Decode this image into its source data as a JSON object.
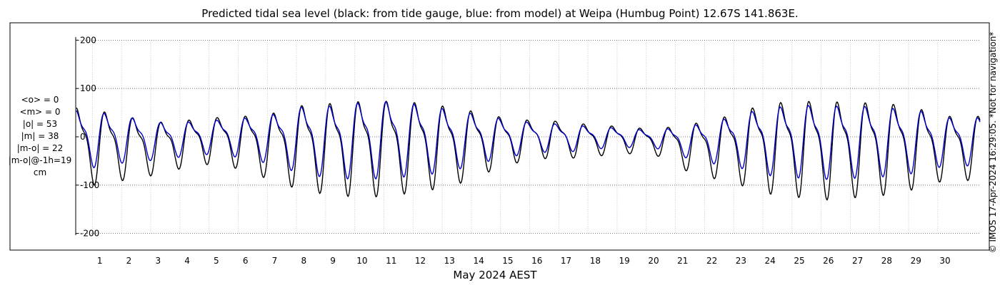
{
  "chart_data": {
    "type": "line",
    "title": "Predicted tidal sea level (black: from tide gauge, blue: from model) at Weipa (Humbug Point) 12.67S 141.863E.",
    "xlabel": "May 2024 AEST",
    "ylabel": "",
    "x_ticks": [
      "1",
      "2",
      "3",
      "4",
      "5",
      "6",
      "7",
      "8",
      "9",
      "10",
      "11",
      "12",
      "13",
      "14",
      "15",
      "16",
      "17",
      "18",
      "19",
      "20",
      "21",
      "22",
      "23",
      "24",
      "25",
      "26",
      "27",
      "28",
      "29",
      "30"
    ],
    "xlim": [
      0.2,
      31.2
    ],
    "ylim": [
      -230,
      230
    ],
    "y_ticks": [
      -200,
      -100,
      0,
      100,
      200
    ],
    "y_tick_labels": [
      "-200",
      "-100",
      "0",
      "100",
      "200"
    ],
    "grid": true,
    "credit": "© IMOS 17-Apr-2024 16:29:05. *Not for navigation*",
    "stats": [
      "<o> = 0",
      "<m> = 0",
      "|o| = 53",
      "|m| = 38",
      "|m-o| = 22",
      "|m-o|@-1h=19",
      "cm"
    ],
    "series": [
      {
        "name": "black: from tide gauge",
        "color": "#000000",
        "highs": [
          80,
          70,
          55,
          42,
          45,
          50,
          55,
          65,
          85,
          90,
          95,
          95,
          90,
          80,
          65,
          48,
          42,
          40,
          30,
          28,
          20,
          35,
          45,
          70,
          90,
          95,
          95,
          92,
          90,
          78,
          57
        ],
        "lows": [
          -105,
          -98,
          -88,
          -78,
          -62,
          -55,
          -70,
          -92,
          -112,
          -120,
          -125,
          -122,
          -112,
          -105,
          -80,
          -58,
          -45,
          -45,
          -40,
          -35,
          -35,
          -68,
          -85,
          -100,
          -118,
          -125,
          -130,
          -125,
          -120,
          -108,
          -90
        ]
      },
      {
        "name": "blue: from model",
        "color": "#0000cc",
        "highs": [
          70,
          62,
          50,
          38,
          38,
          42,
          48,
          58,
          78,
          80,
          88,
          90,
          82,
          70,
          57,
          43,
          35,
          32,
          25,
          22,
          16,
          28,
          38,
          60,
          75,
          82,
          80,
          80,
          75,
          70,
          50
        ],
        "lows": [
          -70,
          -62,
          -52,
          -48,
          -40,
          -35,
          -45,
          -58,
          -78,
          -85,
          -88,
          -85,
          -80,
          -72,
          -55,
          -42,
          -32,
          -32,
          -25,
          -22,
          -22,
          -42,
          -55,
          -65,
          -80,
          -85,
          -88,
          -85,
          -82,
          -75,
          -60
        ]
      }
    ]
  }
}
